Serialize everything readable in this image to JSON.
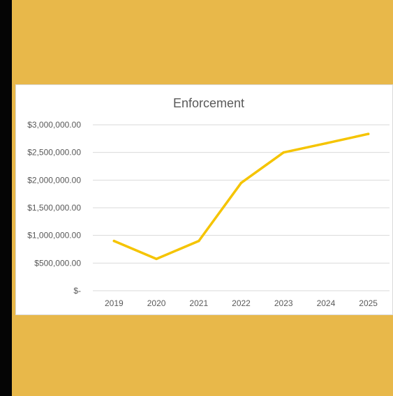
{
  "chart_data": {
    "type": "line",
    "title": "Enforcement",
    "xlabel": "",
    "ylabel": "",
    "categories": [
      "2019",
      "2020",
      "2021",
      "2022",
      "2023",
      "2024",
      "2025"
    ],
    "series": [
      {
        "values": [
          900000,
          575000,
          900000,
          1950000,
          2500000,
          2665000,
          2835000
        ],
        "color": "#f5c400"
      }
    ],
    "ylim": [
      0,
      3000000
    ],
    "yticks": [
      0,
      500000,
      1000000,
      1500000,
      2000000,
      2500000,
      3000000
    ],
    "ytick_labels": [
      "$-",
      "$500,000.00",
      "$1,000,000.00",
      "$1,500,000.00",
      "$2,000,000.00",
      "$2,500,000.00",
      "$3,000,000.00"
    ],
    "grid": true,
    "legend": "none"
  },
  "colors": {
    "background": "#e8b84a",
    "line": "#f5c400",
    "gridline": "#d9d9d9",
    "text": "#595959"
  }
}
